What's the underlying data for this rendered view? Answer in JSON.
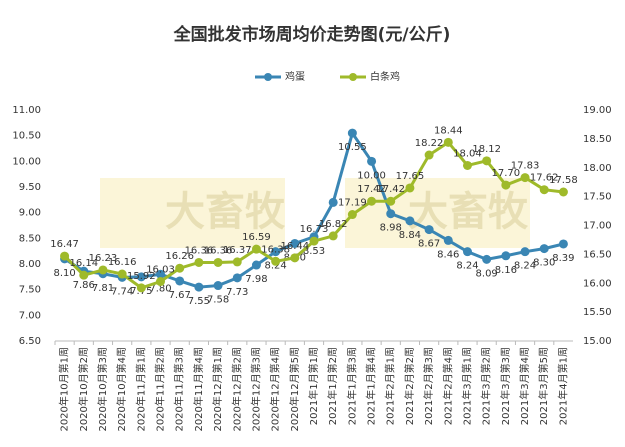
{
  "chart_data": {
    "type": "line",
    "title": "全国批发市场周均价走势图(元/公斤)",
    "watermark": "大畜牧",
    "categories": [
      "2020年10月第1周",
      "2020年10月第2周",
      "2020年10月第3周",
      "2020年10月第4周",
      "2020年11月第1周",
      "2020年11月第2周",
      "2020年11月第3周",
      "2020年11月第4周",
      "2020年12月第1周",
      "2020年12月第2周",
      "2020年12月第3周",
      "2020年12月第4周",
      "2020年12月第5周",
      "2021年1月第1周",
      "2021年1月第2周",
      "2021年1月第3周",
      "2021年1月第4周",
      "2021年2月第1周",
      "2021年2月第2周",
      "2021年2月第3周",
      "2021年2月第4周",
      "2021年3月第1周",
      "2021年3月第2周",
      "2021年3月第3周",
      "2021年3月第4周",
      "2021年3月第5周",
      "2021年4月第1周"
    ],
    "series": [
      {
        "name": "鸡蛋",
        "color": "#3a86b4",
        "axis": "y",
        "values": [
          8.1,
          7.86,
          7.81,
          7.74,
          7.75,
          7.8,
          7.67,
          7.55,
          7.58,
          7.73,
          7.98,
          8.24,
          8.4,
          8.53,
          9.2,
          10.55,
          10.0,
          8.98,
          8.84,
          8.67,
          8.46,
          8.24,
          8.09,
          8.16,
          8.24,
          8.3,
          8.39
        ],
        "value_labels": [
          "8.10",
          "7.86",
          "7.81",
          "7.74",
          "7.75",
          "7.80",
          "7.67",
          "7.55",
          "7.58",
          "7.73",
          "7.98",
          "8.24",
          "8.40",
          "8.53",
          null,
          "10.55",
          "10.00",
          "8.98",
          "8.84",
          "8.67",
          "8.46",
          "8.24",
          "8.09",
          "8.16",
          "8.24",
          "8.30",
          "8.39"
        ]
      },
      {
        "name": "白条鸡",
        "color": "#9fba2a",
        "axis": "y2",
        "values": [
          16.47,
          16.14,
          16.23,
          16.16,
          15.92,
          16.03,
          16.26,
          16.36,
          16.36,
          16.37,
          16.59,
          16.38,
          16.44,
          16.73,
          16.82,
          17.19,
          17.42,
          17.42,
          17.65,
          18.22,
          18.44,
          18.04,
          18.12,
          17.7,
          17.83,
          17.62,
          17.58
        ],
        "value_labels": [
          "16.47",
          "16.14",
          "16.23",
          "16.16",
          "15.92",
          "16.03",
          "16.26",
          "16.36",
          "16.36",
          "16.37",
          "16.59",
          "16.38",
          "16.44",
          "16.73",
          "16.82",
          "17.19",
          "17.42",
          "17.42",
          "17.65",
          "18.22",
          "18.44",
          "18.04",
          "18.12",
          "17.70",
          "17.83",
          "17.62",
          "17.58"
        ]
      }
    ],
    "ylim": [
      6.5,
      11
    ],
    "yticks": [
      {
        "value": 6.5,
        "label": "6.50"
      },
      {
        "value": 7,
        "label": "7.00"
      },
      {
        "value": 7.5,
        "label": "7.50"
      },
      {
        "value": 8,
        "label": "8.00"
      },
      {
        "value": 8.5,
        "label": "8.50"
      },
      {
        "value": 9,
        "label": "9.00"
      },
      {
        "value": 9.5,
        "label": "9.50"
      },
      {
        "value": 10,
        "label": "10.00"
      },
      {
        "value": 10.5,
        "label": "10.50"
      },
      {
        "value": 11,
        "label": "11.00"
      }
    ],
    "y2lim": [
      15,
      19
    ],
    "y2ticks": [
      {
        "value": 15,
        "label": "15.00"
      },
      {
        "value": 15.5,
        "label": "15.50"
      },
      {
        "value": 16,
        "label": "16.00"
      },
      {
        "value": 16.5,
        "label": "16.50"
      },
      {
        "value": 17,
        "label": "17.00"
      },
      {
        "value": 17.5,
        "label": "17.50"
      },
      {
        "value": 18,
        "label": "18.00"
      },
      {
        "value": 18.5,
        "label": "18.50"
      },
      {
        "value": 19,
        "label": "19.00"
      }
    ],
    "legend": "top",
    "grid": false
  }
}
